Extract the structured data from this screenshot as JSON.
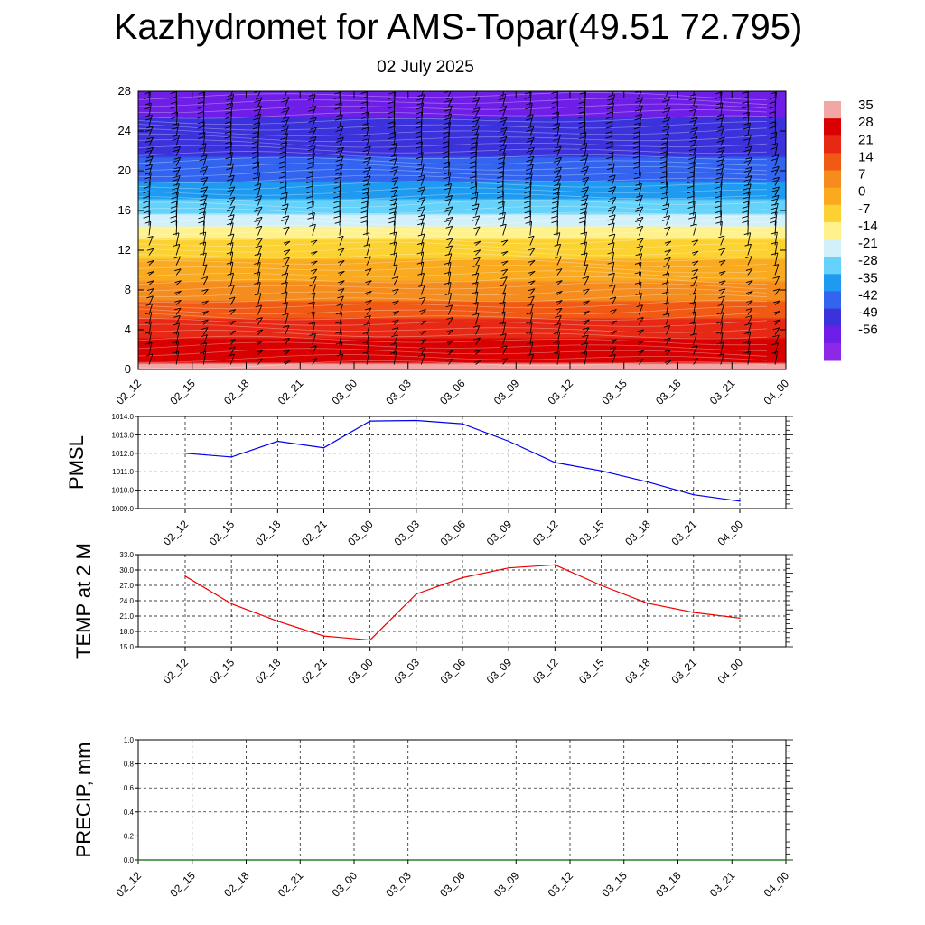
{
  "header": {
    "title": "Kazhydromet for AMS-Topar(49.51 72.795)",
    "date": "02 July 2025"
  },
  "chart_data": [
    {
      "type": "heatmap",
      "subtype": "time-height cross-section with wind barbs",
      "x_ticks": [
        "02_12",
        "02_15",
        "02_18",
        "02_21",
        "03_00",
        "03_03",
        "03_06",
        "03_09",
        "03_12",
        "03_15",
        "03_18",
        "03_21",
        "04_00"
      ],
      "y_ticks": [
        0,
        4,
        8,
        12,
        16,
        20,
        24,
        28
      ],
      "ylim": [
        0,
        28
      ],
      "colorbar": {
        "labels": [
          35,
          28,
          21,
          14,
          7,
          0,
          -7,
          -14,
          -21,
          -28,
          -35,
          -42,
          -49,
          -56
        ],
        "colors": [
          "#f2a7a7",
          "#d80000",
          "#e62814",
          "#f05a14",
          "#f58c1e",
          "#faaa1e",
          "#fbd232",
          "#fff28c",
          "#d2f0fa",
          "#64d2fa",
          "#1e9bf0",
          "#3264f0",
          "#3c32dc",
          "#6e1ee6",
          "#8c28e6"
        ]
      },
      "temperature_by_height": [
        {
          "h": 0,
          "t": 33
        },
        {
          "h": 2,
          "t": 28
        },
        {
          "h": 4,
          "t": 22
        },
        {
          "h": 6,
          "t": 14
        },
        {
          "h": 8,
          "t": 7
        },
        {
          "h": 10,
          "t": 0
        },
        {
          "h": 12.5,
          "t": -7
        },
        {
          "h": 13.8,
          "t": -14
        },
        {
          "h": 15,
          "t": -21
        },
        {
          "h": 16.5,
          "t": -28
        },
        {
          "h": 18,
          "t": -35
        },
        {
          "h": 20,
          "t": -42
        },
        {
          "h": 23,
          "t": -49
        },
        {
          "h": 28,
          "t": -56
        }
      ]
    },
    {
      "type": "line",
      "ylabel": "PMSL",
      "categories": [
        "02_12",
        "02_15",
        "02_18",
        "02_21",
        "03_00",
        "03_03",
        "03_06",
        "03_09",
        "03_12",
        "03_15",
        "03_18",
        "03_21",
        "04_00"
      ],
      "values": [
        1012.0,
        1011.8,
        1012.65,
        1012.3,
        1013.75,
        1013.78,
        1013.6,
        1012.65,
        1011.5,
        1011.05,
        1010.45,
        1009.75,
        1009.4
      ],
      "ylim": [
        1009.0,
        1014.0
      ],
      "yticks": [
        "1009.0",
        "1010.0",
        "1011.0",
        "1012.0",
        "1013.0",
        "1014.0"
      ],
      "color": "#0000ee",
      "grid": true
    },
    {
      "type": "line",
      "ylabel": "TEMP at 2 M",
      "categories": [
        "02_12",
        "02_15",
        "02_18",
        "02_21",
        "03_00",
        "03_03",
        "03_06",
        "03_09",
        "03_12",
        "03_15",
        "03_18",
        "03_21",
        "04_00"
      ],
      "values": [
        28.8,
        23.4,
        20.0,
        17.1,
        16.3,
        25.3,
        28.5,
        30.4,
        31.0,
        27.0,
        23.5,
        21.7,
        20.6
      ],
      "ylim": [
        15.0,
        33.0
      ],
      "yticks": [
        "15.0",
        "18.0",
        "21.0",
        "24.0",
        "27.0",
        "30.0",
        "33.0"
      ],
      "color": "#ee0000",
      "grid": true
    },
    {
      "type": "line",
      "ylabel": "PRECIP, mm",
      "categories": [
        "02_12",
        "02_15",
        "02_18",
        "02_21",
        "03_00",
        "03_03",
        "03_06",
        "03_09",
        "03_12",
        "03_15",
        "03_18",
        "03_21",
        "04_00"
      ],
      "values": [
        0,
        0,
        0,
        0,
        0,
        0,
        0,
        0,
        0,
        0,
        0,
        0,
        0
      ],
      "ylim": [
        0.0,
        1.0
      ],
      "yticks": [
        "0.0",
        "0.2",
        "0.4",
        "0.6",
        "0.8",
        "1.0"
      ],
      "color": "#006400",
      "grid": true
    }
  ]
}
